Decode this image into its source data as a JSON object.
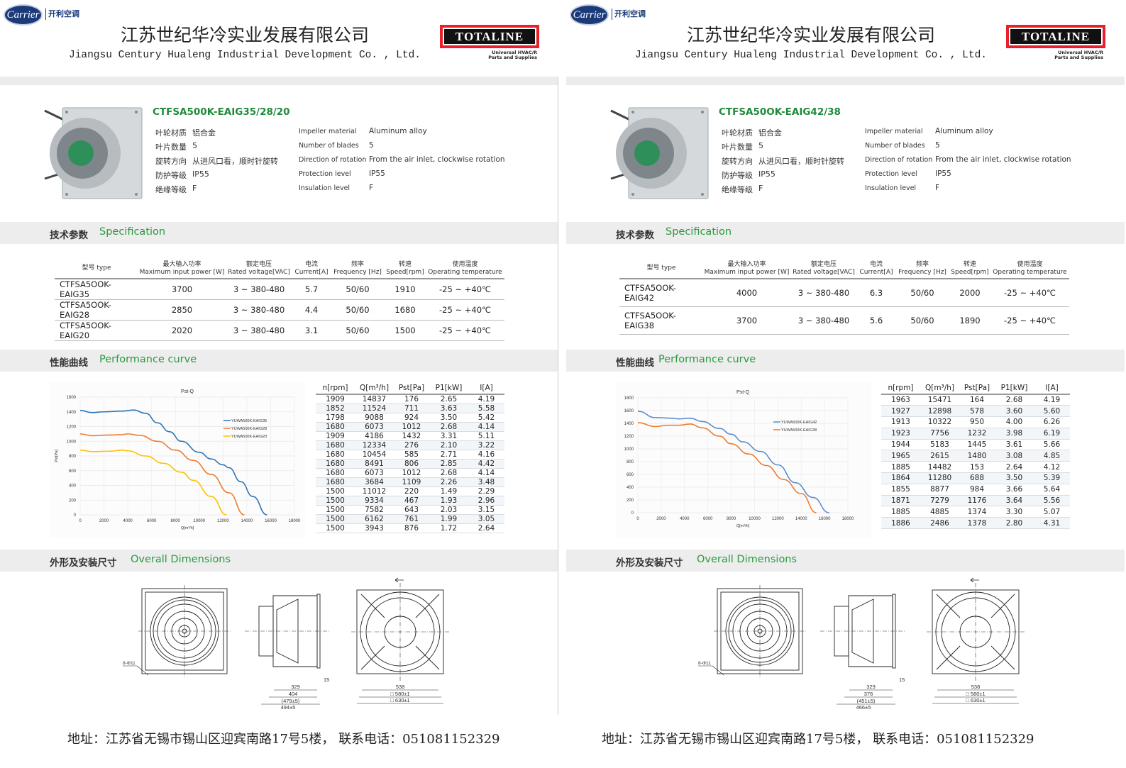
{
  "header": {
    "carrier_logo": "Carrier",
    "carrier_cn": "开利空调",
    "company_cn": "江苏世纪华冷实业发展有限公司",
    "company_en": "Jiangsu Century Hualeng Industrial Development Co. , Ltd.",
    "totaline_logo": "TOTALINE",
    "totaline_sub1": "Universal HVAC/R",
    "totaline_sub2": "Parts and Supplies"
  },
  "sections": {
    "spec_cn": "技术参数",
    "spec_en": "Specification",
    "perf_cn": "性能曲线",
    "perf_en": "Performance curve",
    "dim_cn": "外形及安装尺寸",
    "dim_en": "Overall Dimensions"
  },
  "spec_headers": [
    {
      "cn": "型号 type",
      "en": ""
    },
    {
      "cn": "最大输入功率",
      "en": "Maximum input power [W]"
    },
    {
      "cn": "额定电压",
      "en": "Rated voltage[VAC]"
    },
    {
      "cn": "电流",
      "en": "Current[A]"
    },
    {
      "cn": "频率",
      "en": "Frequency [Hz]"
    },
    {
      "cn": "转速",
      "en": "Speed[rpm]"
    },
    {
      "cn": "使用温度",
      "en": "Operating temperature"
    }
  ],
  "perf_headers": [
    "n[rpm]",
    "Q[m³/h]",
    "Pst[Pa]",
    "P1[kW]",
    "I[A]"
  ],
  "footer": "地址：江苏省无锡市锡山区迎宾南路17号5楼，  联系电话：051081152329",
  "colors": {
    "green": "#2a9a3e",
    "blue": "#2e75b6",
    "orange": "#ed7d31",
    "yellow": "#ffc000",
    "totaline_red": "#e8202a"
  },
  "pages": [
    {
      "model": "CTFSA500K-EAIG35/28/20",
      "properties": [
        {
          "cn_label": "叶轮材质",
          "cn_value": "铝合金",
          "en_label": "Impeller material",
          "en_value": "Aluminum alloy"
        },
        {
          "cn_label": "叶片数量",
          "cn_value": "5",
          "en_label": "Number of blades",
          "en_value": "5"
        },
        {
          "cn_label": "旋转方向",
          "cn_value": "从进风口看，顺时针旋转",
          "en_label": "Direction of rotation",
          "en_value": "From the air inlet, clockwise rotation"
        },
        {
          "cn_label": "防护等级",
          "cn_value": "IP55",
          "en_label": "Protection level",
          "en_value": "IP55"
        },
        {
          "cn_label": "绝缘等级",
          "cn_value": "F",
          "en_label": "Insulation level",
          "en_value": "F"
        }
      ],
      "spec_rows": [
        [
          "CTFSA5OOK-EAIG35",
          "3700",
          "3 ~ 380-480",
          "5.7",
          "50/60",
          "1910",
          "-25 ~ +40℃"
        ],
        [
          "CTFSA5OOK-EAIG28",
          "2850",
          "3 ~ 380-480",
          "4.4",
          "50/60",
          "1680",
          "-25 ~ +40℃"
        ],
        [
          "CTFSA5OOK-EAIG20",
          "2020",
          "3 ~ 380-480",
          "3.1",
          "50/60",
          "1500",
          "-25 ~ +40℃"
        ]
      ],
      "perf_rows": [
        [
          "1909",
          "14837",
          "176",
          "2.65",
          "4.19"
        ],
        [
          "1852",
          "11524",
          "711",
          "3.63",
          "5.58"
        ],
        [
          "1798",
          "9088",
          "924",
          "3.50",
          "5.42"
        ],
        [
          "1680",
          "6073",
          "1012",
          "2.68",
          "4.14"
        ],
        [
          "1909",
          "4186",
          "1432",
          "3.31",
          "5.11"
        ],
        [
          "1680",
          "12334",
          "276",
          "2.10",
          "3.22"
        ],
        [
          "1680",
          "10454",
          "585",
          "2.71",
          "4.16"
        ],
        [
          "1680",
          "8491",
          "806",
          "2.85",
          "4.42"
        ],
        [
          "1680",
          "6073",
          "1012",
          "2.68",
          "4.14"
        ],
        [
          "1680",
          "3684",
          "1109",
          "2.26",
          "3.48"
        ],
        [
          "1500",
          "11012",
          "220",
          "1.49",
          "2.29"
        ],
        [
          "1500",
          "9334",
          "467",
          "1.93",
          "2.96"
        ],
        [
          "1500",
          "7582",
          "643",
          "2.03",
          "3.15"
        ],
        [
          "1500",
          "6162",
          "761",
          "1.99",
          "3.05"
        ],
        [
          "1500",
          "3943",
          "876",
          "1.72",
          "2.64"
        ]
      ],
      "dimensions": {
        "holes": "8-Φ11",
        "d1": "329",
        "d2": "404",
        "d3": "(479±5)",
        "d4": "494±5",
        "d5": "15",
        "f1": "538",
        "f2": "□ 580±1",
        "f3": "□ 630±1"
      }
    },
    {
      "model": "CTFSA50OK-EAIG42/38",
      "properties": [
        {
          "cn_label": "叶轮材质",
          "cn_value": "铝合金",
          "en_label": "Impeller material",
          "en_value": "Aluminum alloy"
        },
        {
          "cn_label": "叶片数量",
          "cn_value": "5",
          "en_label": "Number of blades",
          "en_value": "5"
        },
        {
          "cn_label": "旋转方向",
          "cn_value": "从进风口看，顺时针旋转",
          "en_label": "Direction of rotation",
          "en_value": "From the air inlet, clockwise rotation"
        },
        {
          "cn_label": "防护等级",
          "cn_value": "IP55",
          "en_label": "Protection level",
          "en_value": "IP55"
        },
        {
          "cn_label": "绝缘等级",
          "cn_value": "F",
          "en_label": "Insulation level",
          "en_value": "F"
        }
      ],
      "spec_rows": [
        [
          "CTFSA5OOK-EAIG42",
          "4000",
          "3 ~ 380-480",
          "6.3",
          "50/60",
          "2000",
          "-25 ~ +40℃"
        ],
        [
          "CTFSA5OOK-EAIG38",
          "3700",
          "3 ~ 380-480",
          "5.6",
          "50/60",
          "1890",
          "-25 ~ +40℃"
        ]
      ],
      "perf_rows": [
        [
          "1963",
          "15471",
          "164",
          "2.68",
          "4.19"
        ],
        [
          "1927",
          "12898",
          "578",
          "3.60",
          "5.60"
        ],
        [
          "1913",
          "10322",
          "950",
          "4.00",
          "6.26"
        ],
        [
          "1923",
          "7756",
          "1232",
          "3.98",
          "6.19"
        ],
        [
          "1944",
          "5183",
          "1445",
          "3.61",
          "5.66"
        ],
        [
          "1965",
          "2615",
          "1480",
          "3.08",
          "4.85"
        ],
        [
          "1885",
          "14482",
          "153",
          "2.64",
          "4.12"
        ],
        [
          "1864",
          "11280",
          "688",
          "3.50",
          "5.39"
        ],
        [
          "1855",
          "8877",
          "984",
          "3.66",
          "5.64"
        ],
        [
          "1871",
          "7279",
          "1176",
          "3.64",
          "5.56"
        ],
        [
          "1885",
          "4885",
          "1374",
          "3.30",
          "5.07"
        ],
        [
          "1886",
          "2486",
          "1378",
          "2.80",
          "4.31"
        ]
      ],
      "dimensions": {
        "holes": "8-Φ11",
        "d1": "329",
        "d2": "376",
        "d3": "(451±5)",
        "d4": "466±5",
        "d5": "15",
        "f1": "538",
        "f2": "□ 580±1",
        "f3": "□ 630±1"
      }
    }
  ],
  "chart_data": [
    {
      "type": "line",
      "title": "Pst-Q",
      "xlabel": "Q[m³/h]",
      "ylabel": "Pst[Pa]",
      "xlim": [
        0,
        18000
      ],
      "ylim": [
        0,
        1600
      ],
      "xticks": [
        0,
        2000,
        4000,
        6000,
        8000,
        10000,
        12000,
        14000,
        16000,
        18000
      ],
      "yticks": [
        0,
        200,
        400,
        600,
        800,
        1000,
        1200,
        1400,
        1600
      ],
      "grid": true,
      "legend": "right",
      "series": [
        {
          "name": "YUWA500K-EAIG35",
          "color": "#2e75b6",
          "x": [
            0,
            1000,
            2000,
            3500,
            4500,
            5500,
            6500,
            7500,
            8500,
            10000,
            11000,
            12000,
            12500,
            13500,
            14500,
            15700
          ],
          "y": [
            1420,
            1390,
            1400,
            1410,
            1425,
            1380,
            1250,
            1130,
            1000,
            850,
            760,
            680,
            640,
            450,
            250,
            0
          ]
        },
        {
          "name": "YUWA500K-EAIG28",
          "color": "#ed7d31",
          "x": [
            0,
            1000,
            2500,
            3500,
            4000,
            5000,
            6500,
            8000,
            9500,
            11000,
            12500,
            13800
          ],
          "y": [
            1100,
            1075,
            1085,
            1090,
            1100,
            1080,
            1000,
            880,
            740,
            550,
            300,
            0
          ]
        },
        {
          "name": "YUWA500K-EAIG20",
          "color": "#ffc000",
          "x": [
            0,
            1000,
            2500,
            3500,
            4000,
            5500,
            7000,
            8500,
            9500,
            11000,
            12300
          ],
          "y": [
            880,
            860,
            865,
            880,
            870,
            800,
            700,
            580,
            470,
            250,
            0
          ]
        }
      ]
    },
    {
      "type": "line",
      "title": "Pst-Q",
      "xlabel": "Q[m³/h]",
      "ylabel": "Pst[Pa]",
      "xlim": [
        0,
        18000
      ],
      "ylim": [
        0,
        1800
      ],
      "xticks": [
        0,
        2000,
        4000,
        6000,
        8000,
        10000,
        12000,
        14000,
        16000,
        18000
      ],
      "yticks": [
        0,
        200,
        400,
        600,
        800,
        1000,
        1200,
        1400,
        1600,
        1800
      ],
      "grid": true,
      "legend": "right",
      "series": [
        {
          "name": "YUWA500K-EAIG42",
          "color": "#5b8fd0",
          "x": [
            0,
            1500,
            3000,
            3500,
            4500,
            5500,
            7000,
            8000,
            9000,
            10500,
            12000,
            13500,
            15000,
            16400
          ],
          "y": [
            1590,
            1490,
            1480,
            1470,
            1480,
            1430,
            1320,
            1230,
            1110,
            960,
            750,
            470,
            240,
            0
          ]
        },
        {
          "name": "YUWA500K-EAIG38",
          "color": "#ed7d31",
          "x": [
            0,
            1500,
            2500,
            3500,
            4500,
            5500,
            7000,
            8000,
            9500,
            11000,
            12500,
            14000,
            15300
          ],
          "y": [
            1410,
            1350,
            1370,
            1370,
            1390,
            1330,
            1200,
            1080,
            920,
            740,
            520,
            300,
            0
          ]
        }
      ]
    }
  ]
}
